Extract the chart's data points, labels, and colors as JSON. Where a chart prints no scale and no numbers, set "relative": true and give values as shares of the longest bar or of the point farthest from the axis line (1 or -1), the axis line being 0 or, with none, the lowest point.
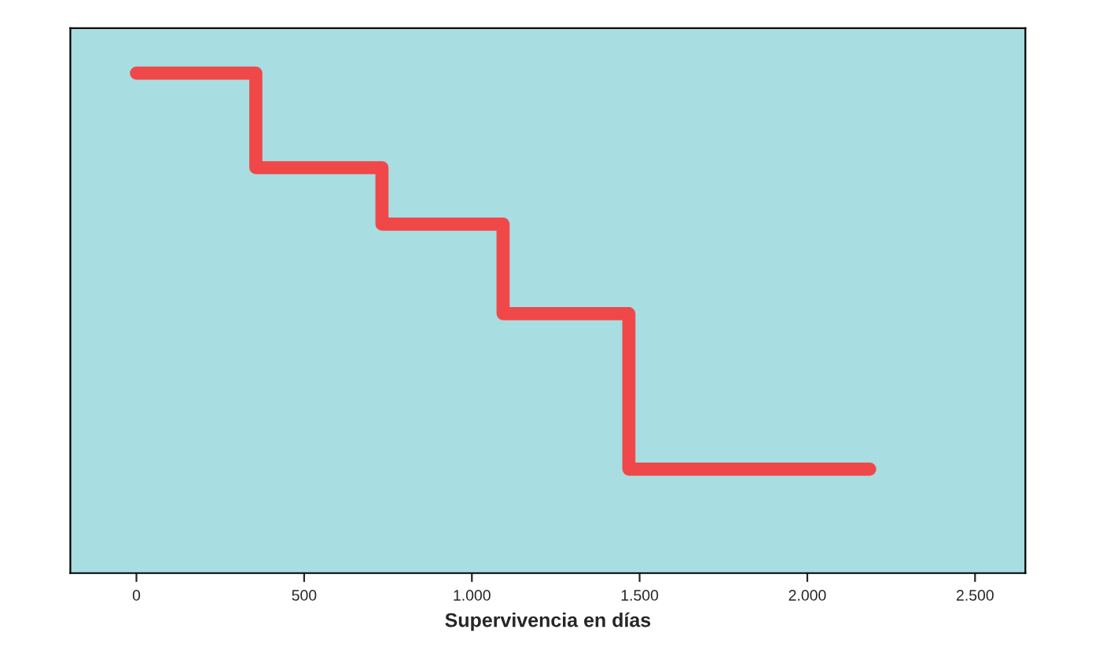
{
  "chart_data": {
    "type": "step",
    "xlabel": "Supervivencia en días",
    "x": [
      0,
      356,
      732,
      1093,
      1468,
      2186
    ],
    "series": [
      {
        "color": "#f04848",
        "values": [
          1,
          0.811,
          0.698,
          0.519,
          0.208,
          0.208
        ]
      }
    ],
    "relative": true,
    "xlim": [
      -197,
      2650
    ],
    "xticks": [
      0,
      500,
      {
        "value": 1000,
        "label": "1.000"
      },
      {
        "value": 1500,
        "label": "1.500"
      },
      {
        "value": 2000,
        "label": "2.000"
      },
      {
        "value": 2500,
        "label": "2.500"
      }
    ],
    "grid": false,
    "legend": false
  }
}
